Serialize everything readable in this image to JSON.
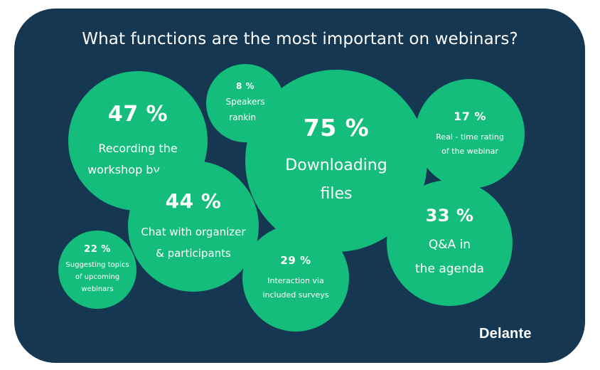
{
  "title": "What functions are the most important on webinars?",
  "brand": "Delante",
  "colors": {
    "background": "#163751",
    "bubble": "#14bd7b",
    "text": "#ffffff"
  },
  "chart_data": {
    "type": "bubble",
    "title": "What functions are the most important on webinars?",
    "items": [
      {
        "label": "Recording the\nworkshop by user",
        "value": 47,
        "display": "47 %"
      },
      {
        "label": "Speakers\nranking",
        "value": 8,
        "display": "8 %"
      },
      {
        "label": "Downloading\nfiles",
        "value": 75,
        "display": "75 %"
      },
      {
        "label": "Real - time rating\nof the webinar",
        "value": 17,
        "display": "17 %"
      },
      {
        "label": "Chat with organizer\n& participants",
        "value": 44,
        "display": "44 %"
      },
      {
        "label": "Q&A in\nthe agenda",
        "value": 33,
        "display": "33 %"
      },
      {
        "label": "Suggesting topics\nof upcoming\nwebinars",
        "value": 22,
        "display": "22 %"
      },
      {
        "label": "Interaction via\nincluded surveys",
        "value": 29,
        "display": "29 %"
      }
    ]
  }
}
